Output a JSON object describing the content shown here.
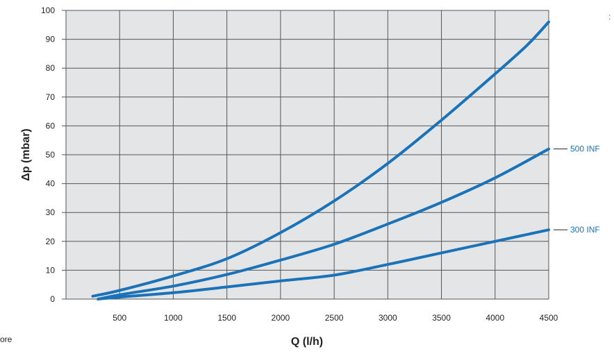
{
  "corner_note": "ore",
  "corner_mark": ":",
  "chart_data": {
    "type": "line",
    "title": "",
    "xlabel": "Q (l/h)",
    "ylabel": "Δp (mbar)",
    "xlim": [
      0,
      4500
    ],
    "ylim": [
      0,
      100
    ],
    "x_ticks": [
      500,
      1000,
      1500,
      2000,
      2500,
      3000,
      3500,
      4000,
      4500
    ],
    "y_ticks": [
      0,
      10,
      20,
      30,
      40,
      50,
      60,
      70,
      80,
      90,
      100
    ],
    "grid": true,
    "plot_background": "#e4e5e6",
    "line_color": "#1a73b8",
    "label_color": "#1a73b8",
    "series": [
      {
        "x": [
          250,
          500,
          1000,
          1500,
          2000,
          2500,
          3000,
          3500,
          4000,
          4300,
          4500
        ],
        "y": [
          1,
          3,
          8,
          14,
          23,
          34,
          47,
          62,
          78,
          88,
          96
        ]
      },
      {
        "name": "500 INF",
        "x": [
          300,
          500,
          1000,
          1500,
          2000,
          2500,
          3000,
          3500,
          4000,
          4500
        ],
        "y": [
          0,
          1.5,
          4.5,
          8.5,
          13.5,
          19,
          26,
          33.5,
          42,
          52
        ]
      },
      {
        "name": "300 INF",
        "x": [
          300,
          500,
          1000,
          1500,
          2000,
          2500,
          3000,
          3500,
          4000,
          4500
        ],
        "y": [
          0,
          0.7,
          2.2,
          4.2,
          6.3,
          8.3,
          12,
          16,
          20,
          24
        ]
      }
    ]
  }
}
